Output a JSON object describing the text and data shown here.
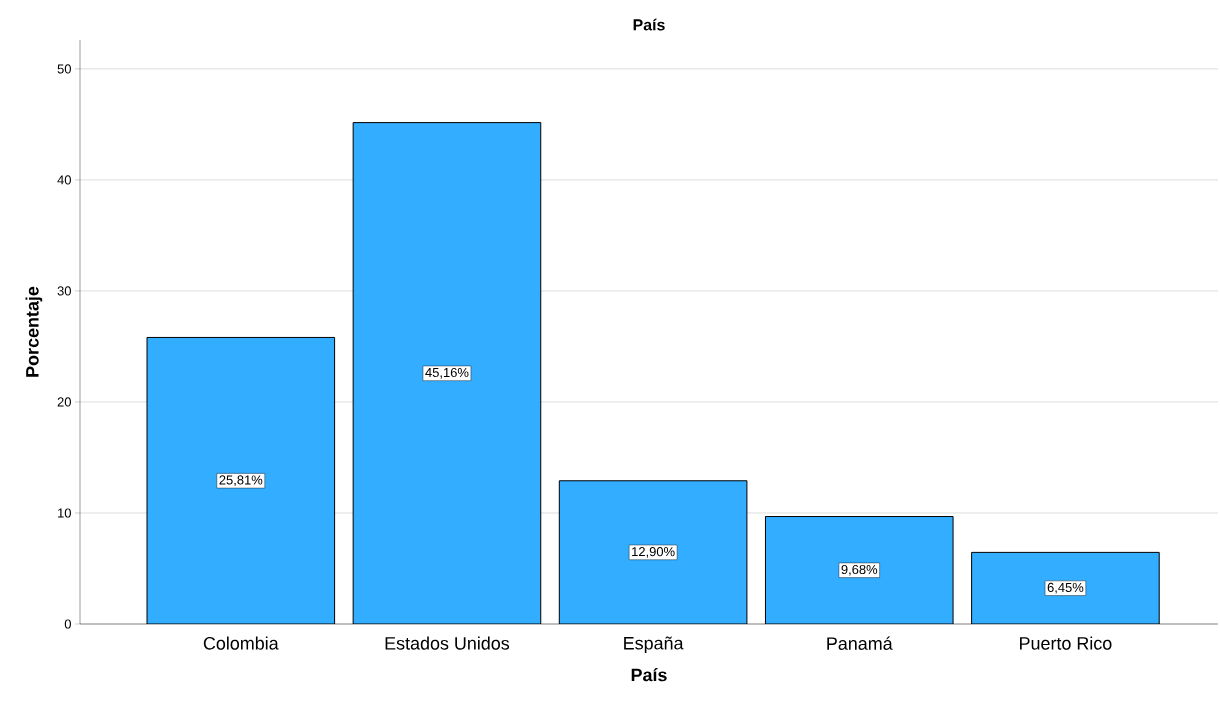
{
  "chart_data": {
    "type": "bar",
    "title": "País",
    "xlabel": "País",
    "ylabel": "Porcentaje",
    "categories": [
      "Colombia",
      "Estados Unidos",
      "España",
      "Panamá",
      "Puerto Rico"
    ],
    "values": [
      25.81,
      45.16,
      12.9,
      9.68,
      6.45
    ],
    "value_labels": [
      "25,81%",
      "45,16%",
      "12,90%",
      "9,68%",
      "6,45%"
    ],
    "color": "#33adff",
    "ylim": [
      0,
      52.6
    ],
    "yticks": [
      0,
      10,
      20,
      30,
      40,
      50
    ],
    "grid": "y"
  }
}
